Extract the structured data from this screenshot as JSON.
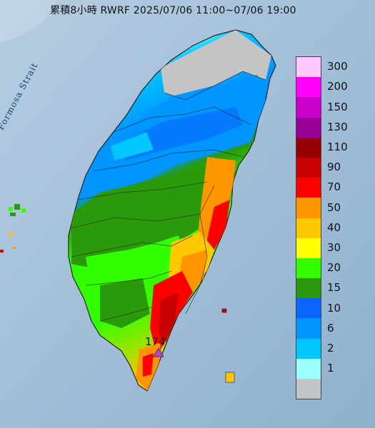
{
  "title": "累積8小時 RWRF 2025/07/06 11:00~07/06 19:00",
  "strait_label": "Formosa Strait",
  "max_marker": {
    "value": "174",
    "icon": "triangle-marker-icon",
    "color": "#b04ac8"
  },
  "legend": [
    {
      "label": "300",
      "color": "#ffc8ff"
    },
    {
      "label": "200",
      "color": "#ff00ff"
    },
    {
      "label": "150",
      "color": "#cc00cc"
    },
    {
      "label": "130",
      "color": "#9a009a"
    },
    {
      "label": "110",
      "color": "#960000"
    },
    {
      "label": "90",
      "color": "#c80000"
    },
    {
      "label": "70",
      "color": "#ff0000"
    },
    {
      "label": "50",
      "color": "#ff9600"
    },
    {
      "label": "40",
      "color": "#ffc800"
    },
    {
      "label": "30",
      "color": "#ffff00"
    },
    {
      "label": "20",
      "color": "#32ff00"
    },
    {
      "label": "15",
      "color": "#2a9a0a"
    },
    {
      "label": "10",
      "color": "#0a64ff"
    },
    {
      "label": "6",
      "color": "#0096ff"
    },
    {
      "label": "2",
      "color": "#00c8ff"
    },
    {
      "label": "1",
      "color": "#9bffff"
    },
    {
      "label": "",
      "color": "#c4c4c4"
    }
  ]
}
